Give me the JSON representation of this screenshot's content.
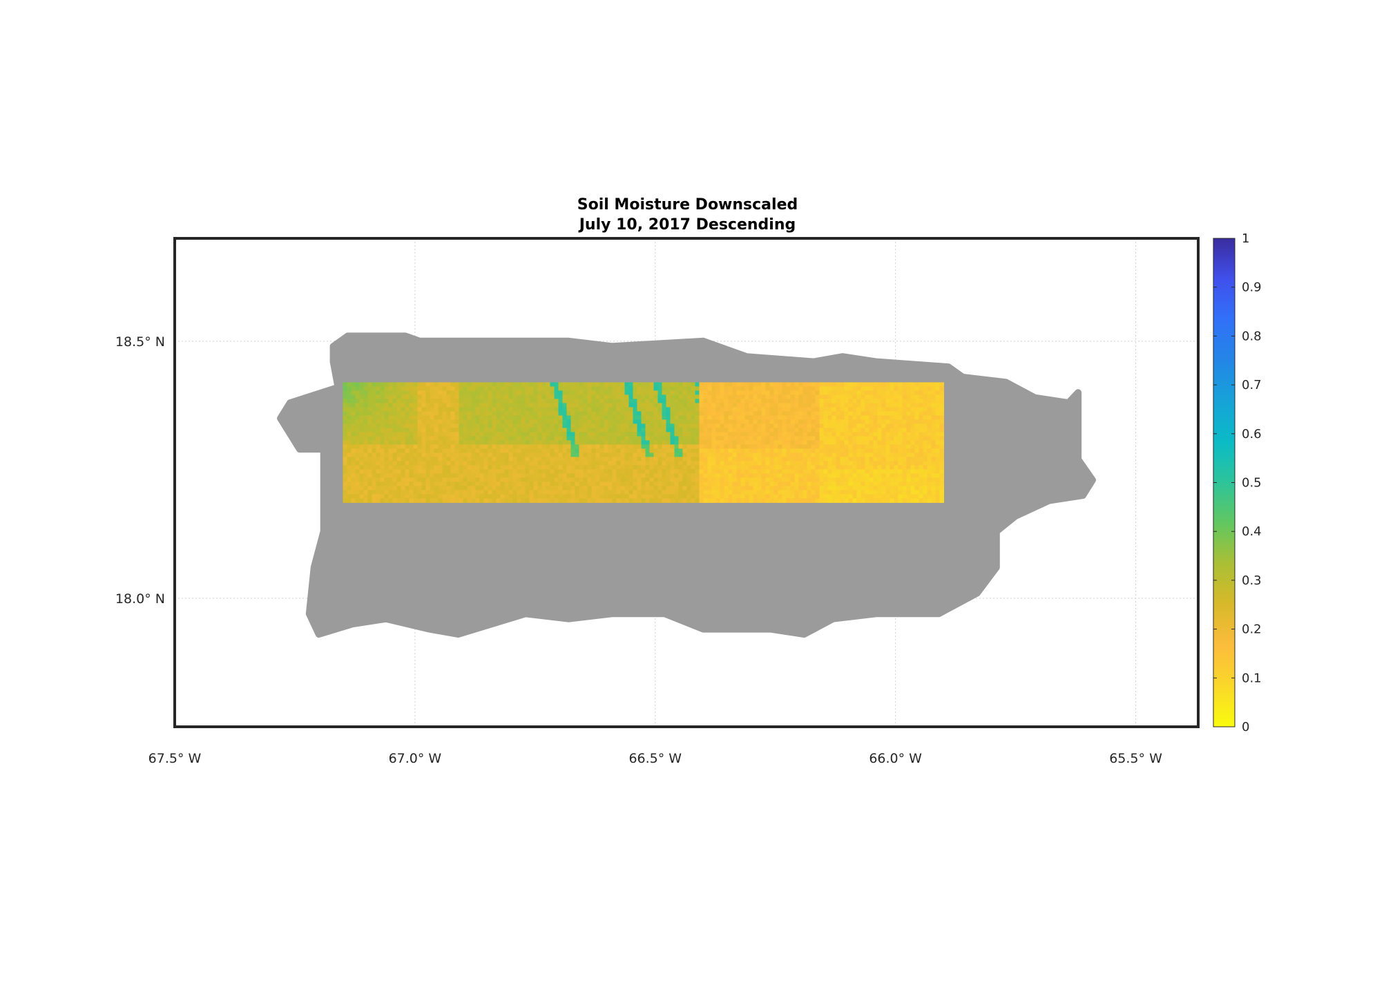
{
  "chart_data": {
    "type": "heatmap",
    "title": "Soil Moisture Downscaled",
    "subtitle": "July 10, 2017 Descending",
    "xlim": [
      -67.5,
      -65.37
    ],
    "ylim": [
      17.75,
      18.7
    ],
    "grid": true,
    "x_ticks": [
      {
        "value": -67.5,
        "label": "67.5° W"
      },
      {
        "value": -67.0,
        "label": "67.0° W"
      },
      {
        "value": -66.5,
        "label": "66.5° W"
      },
      {
        "value": -66.0,
        "label": "66.0° W"
      },
      {
        "value": -65.5,
        "label": "65.5° W"
      }
    ],
    "y_ticks": [
      {
        "value": 18.5,
        "label": "18.5° N"
      },
      {
        "value": 18.0,
        "label": "18.0° N"
      }
    ],
    "land_color": "#9b9b9b",
    "land_outline_lonlat": [
      [
        -67.17,
        18.49
      ],
      [
        -67.14,
        18.51
      ],
      [
        -67.02,
        18.51
      ],
      [
        -66.99,
        18.5
      ],
      [
        -66.77,
        18.5
      ],
      [
        -66.68,
        18.5
      ],
      [
        -66.59,
        18.49
      ],
      [
        -66.4,
        18.5
      ],
      [
        -66.31,
        18.47
      ],
      [
        -66.17,
        18.46
      ],
      [
        -66.11,
        18.47
      ],
      [
        -66.04,
        18.46
      ],
      [
        -65.89,
        18.45
      ],
      [
        -65.86,
        18.43
      ],
      [
        -65.77,
        18.42
      ],
      [
        -65.71,
        18.39
      ],
      [
        -65.64,
        18.38
      ],
      [
        -65.62,
        18.4
      ],
      [
        -65.62,
        18.27
      ],
      [
        -65.59,
        18.23
      ],
      [
        -65.61,
        18.2
      ],
      [
        -65.68,
        18.19
      ],
      [
        -65.75,
        18.16
      ],
      [
        -65.79,
        18.13
      ],
      [
        -65.79,
        18.06
      ],
      [
        -65.83,
        18.01
      ],
      [
        -65.91,
        17.97
      ],
      [
        -66.04,
        17.97
      ],
      [
        -66.13,
        17.96
      ],
      [
        -66.19,
        17.93
      ],
      [
        -66.26,
        17.94
      ],
      [
        -66.4,
        17.94
      ],
      [
        -66.48,
        17.97
      ],
      [
        -66.59,
        17.97
      ],
      [
        -66.68,
        17.96
      ],
      [
        -66.77,
        17.97
      ],
      [
        -66.91,
        17.93
      ],
      [
        -66.97,
        17.94
      ],
      [
        -67.06,
        17.96
      ],
      [
        -67.13,
        17.95
      ],
      [
        -67.2,
        17.93
      ],
      [
        -67.22,
        17.97
      ],
      [
        -67.21,
        18.06
      ],
      [
        -67.19,
        18.13
      ],
      [
        -67.19,
        18.29
      ],
      [
        -67.24,
        18.29
      ],
      [
        -67.28,
        18.35
      ],
      [
        -67.26,
        18.38
      ],
      [
        -67.16,
        18.41
      ],
      [
        -67.17,
        18.46
      ]
    ],
    "data_extent": {
      "lon": [
        -67.15,
        -65.9
      ],
      "lat": [
        18.19,
        18.42
      ]
    },
    "data_blocks": [
      {
        "lon": [
          -67.15,
          -66.91
        ],
        "mean_value": 0.23
      },
      {
        "lon": [
          -66.91,
          -66.41
        ],
        "mean_value": 0.26
      },
      {
        "lon": [
          -66.41,
          -66.16
        ],
        "mean_value": 0.17
      },
      {
        "lon": [
          -66.16,
          -65.9
        ],
        "mean_value": 0.12
      }
    ],
    "colorbar": {
      "range": [
        0,
        1
      ],
      "ticks": [
        "0",
        "0.1",
        "0.2",
        "0.3",
        "0.4",
        "0.5",
        "0.6",
        "0.7",
        "0.8",
        "0.9",
        "1"
      ],
      "colormap": [
        "#f9fb0e",
        "#fad82a",
        "#fcbc3c",
        "#d8b92a",
        "#abbf34",
        "#62c760",
        "#2ec49a",
        "#0bbbc6",
        "#16a3d8",
        "#2386e6",
        "#3171f8",
        "#4050ec",
        "#3a2c9e"
      ]
    }
  }
}
